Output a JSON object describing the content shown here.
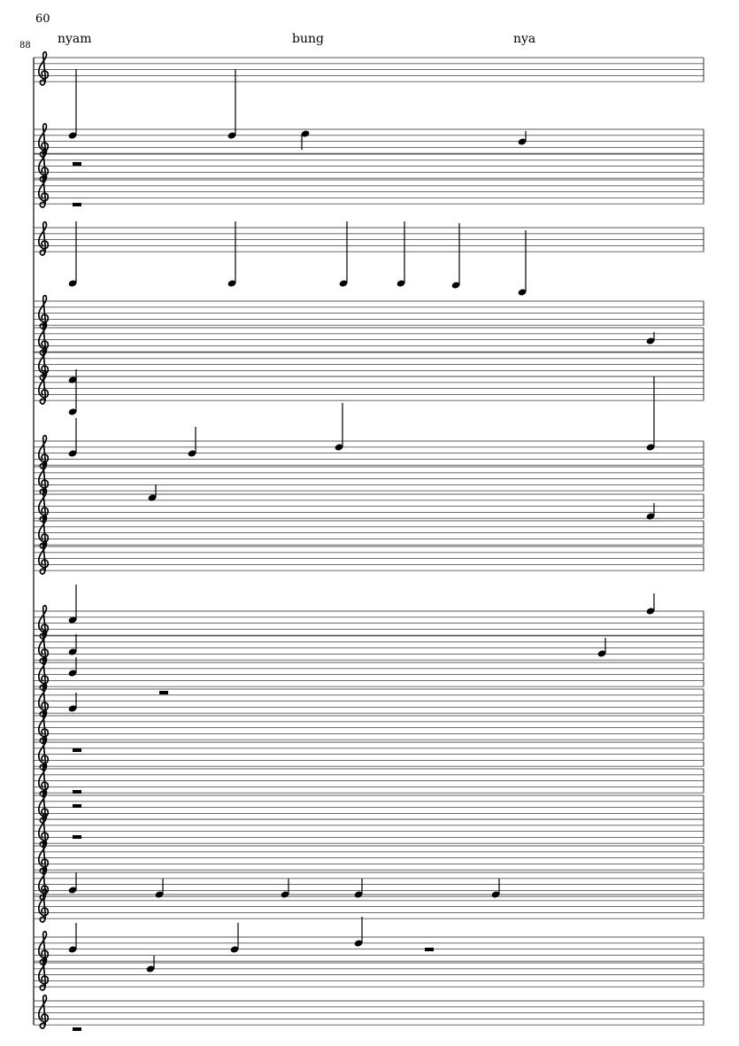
{
  "score": {
    "tempo_or_page_number": "60",
    "bar_number": "88",
    "lyrics": [
      "nyam",
      "bung",
      "nya"
    ],
    "clef": "treble-clef",
    "staff_count": 29
  }
}
